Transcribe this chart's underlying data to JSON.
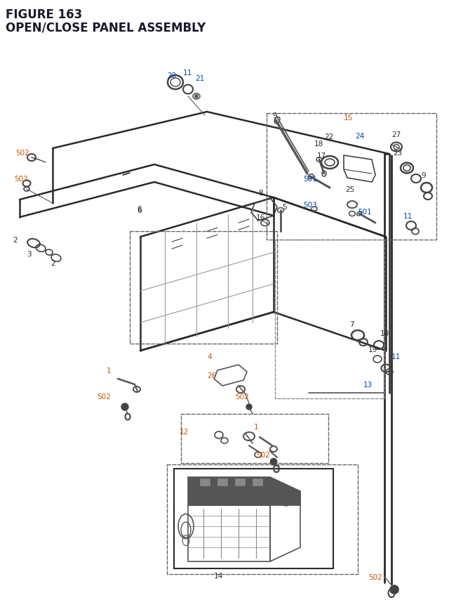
{
  "title_line1": "FIGURE 163",
  "title_line2": "OPEN/CLOSE PANEL ASSEMBLY",
  "bg_color": "#ffffff",
  "title_color": "#1a1a2e",
  "title_fontsize": 12,
  "lc": "#2a2a2a",
  "oc": "#cc5500",
  "bc": "#0044aa",
  "tc": "#007777",
  "fig_width": 6.4,
  "fig_height": 8.62
}
